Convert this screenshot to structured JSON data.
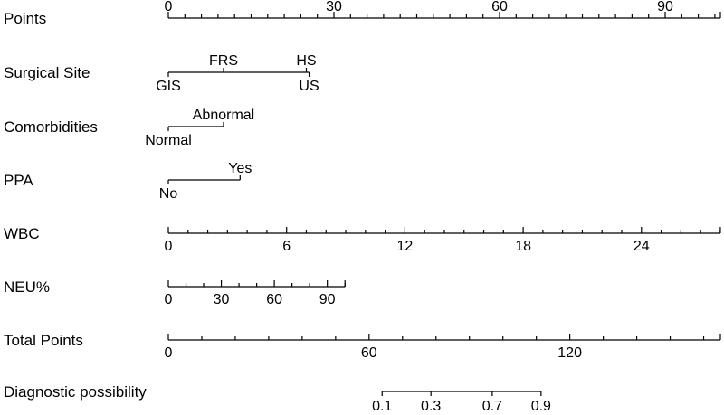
{
  "chart_data": {
    "type": "nomogram",
    "rows": [
      {
        "kind": "numeric",
        "label": "Points",
        "range": [
          0,
          100
        ],
        "major": [
          0,
          30,
          60,
          90
        ],
        "labeled": [
          0,
          30,
          60,
          90
        ],
        "minor_step": 3,
        "labels_above": true
      },
      {
        "kind": "categorical",
        "label": "Surgical Site",
        "levels": [
          {
            "name": "GIS",
            "points": 0,
            "side": "below"
          },
          {
            "name": "FRS",
            "points": 10,
            "side": "above"
          },
          {
            "name": "HS",
            "points": 25,
            "side": "above"
          },
          {
            "name": "US",
            "points": 25.5,
            "side": "below"
          }
        ]
      },
      {
        "kind": "categorical",
        "label": "Comorbidities",
        "levels": [
          {
            "name": "Normal",
            "points": 0,
            "side": "below"
          },
          {
            "name": "Abnormal",
            "points": 10,
            "side": "above"
          }
        ]
      },
      {
        "kind": "categorical",
        "label": "PPA",
        "levels": [
          {
            "name": "No",
            "points": 0,
            "side": "below"
          },
          {
            "name": "Yes",
            "points": 13,
            "side": "above"
          }
        ]
      },
      {
        "kind": "numeric",
        "label": "WBC",
        "range": [
          0,
          28
        ],
        "major": [
          0,
          6,
          12,
          18,
          24
        ],
        "labeled": [
          0,
          6,
          12,
          18,
          24
        ],
        "minor_step": 1,
        "points_per_unit": 3.571
      },
      {
        "kind": "numeric",
        "label": "NEU%",
        "range": [
          0,
          100
        ],
        "major": [
          0,
          30,
          60,
          90
        ],
        "labeled": [
          0,
          30,
          60,
          90
        ],
        "minor_step": 10,
        "points_per_unit": 0.32
      },
      {
        "kind": "numeric",
        "label": "Total Points",
        "range": [
          0,
          165
        ],
        "major": [
          0,
          60,
          120
        ],
        "labeled": [
          0,
          60,
          120
        ],
        "minor_step": 10
      },
      {
        "kind": "probability",
        "label": "Diagnostic possibility",
        "ticks": [
          0.1,
          0.3,
          0.7,
          0.9
        ],
        "labeled": [
          0.1,
          0.3,
          0.7,
          0.9
        ],
        "total_points_range": [
          63.9,
          111.4
        ]
      }
    ]
  }
}
